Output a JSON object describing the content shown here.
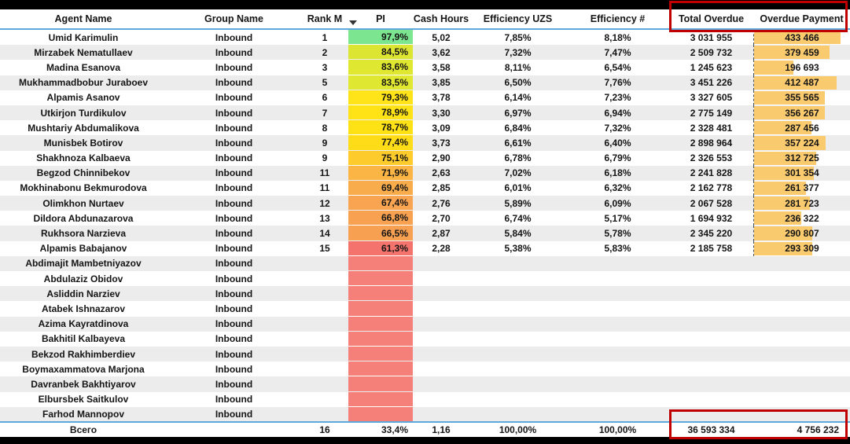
{
  "colors": {
    "accent_blue": "#5FA8DB",
    "highlight_red": "#C00000",
    "bar_fill": "#FACA6E",
    "alt_row": "#ECECEC",
    "blank_pi_red": "#F57F79"
  },
  "icons": {
    "sort_descending_icon": "triangle-down"
  },
  "table": {
    "columns": [
      {
        "key": "agent",
        "label": "Agent Name"
      },
      {
        "key": "group",
        "label": "Group Name"
      },
      {
        "key": "rank",
        "label": "Rank M"
      },
      {
        "key": "pi",
        "label": "PI"
      },
      {
        "key": "cash",
        "label": "Cash Hours"
      },
      {
        "key": "eff_uzs",
        "label": "Efficiency UZS"
      },
      {
        "key": "eff_num",
        "label": "Efficiency #"
      },
      {
        "key": "total_overdue",
        "label": "Total Overdue"
      },
      {
        "key": "overdue_payment",
        "label": "Overdue Payment"
      }
    ],
    "bar_max": 433466,
    "rows": [
      {
        "agent": "Umid Karimulin",
        "group": "Inbound",
        "rank": "1",
        "pi": "97,9%",
        "pi_color": "#7CE58F",
        "cash": "5,02",
        "eff_uzs": "7,85%",
        "eff_num": "8,18%",
        "total_overdue": "3 031 955",
        "overdue_payment": "433 466",
        "bar": 433466
      },
      {
        "agent": "Mirzabek Nematullaev",
        "group": "Inbound",
        "rank": "2",
        "pi": "84,5%",
        "pi_color": "#DCE532",
        "cash": "3,62",
        "eff_uzs": "7,32%",
        "eff_num": "7,47%",
        "total_overdue": "2 509 732",
        "overdue_payment": "379 459",
        "bar": 379459
      },
      {
        "agent": "Madina Esanova",
        "group": "Inbound",
        "rank": "3",
        "pi": "83,6%",
        "pi_color": "#DFE731",
        "cash": "3,58",
        "eff_uzs": "8,11%",
        "eff_num": "6,54%",
        "total_overdue": "1 245 623",
        "overdue_payment": "196 693",
        "bar": 196693
      },
      {
        "agent": "Mukhammadbobur Juraboev",
        "group": "Inbound",
        "rank": "5",
        "pi": "83,5%",
        "pi_color": "#DFE731",
        "cash": "3,85",
        "eff_uzs": "6,50%",
        "eff_num": "7,76%",
        "total_overdue": "3 451 226",
        "overdue_payment": "412 487",
        "bar": 412487
      },
      {
        "agent": "Alpamis Asanov",
        "group": "Inbound",
        "rank": "6",
        "pi": "79,3%",
        "pi_color": "#FFE41A",
        "cash": "3,78",
        "eff_uzs": "6,14%",
        "eff_num": "7,23%",
        "total_overdue": "3 327 605",
        "overdue_payment": "355 565",
        "bar": 355565
      },
      {
        "agent": "Utkirjon Turdikulov",
        "group": "Inbound",
        "rank": "7",
        "pi": "78,9%",
        "pi_color": "#FFE316",
        "cash": "3,30",
        "eff_uzs": "6,97%",
        "eff_num": "6,94%",
        "total_overdue": "2 775 149",
        "overdue_payment": "356 267",
        "bar": 356267
      },
      {
        "agent": "Mushtariy Abdumalikova",
        "group": "Inbound",
        "rank": "8",
        "pi": "78,7%",
        "pi_color": "#FFE216",
        "cash": "3,09",
        "eff_uzs": "6,84%",
        "eff_num": "7,32%",
        "total_overdue": "2 328 481",
        "overdue_payment": "287 456",
        "bar": 287456
      },
      {
        "agent": "Munisbek Botirov",
        "group": "Inbound",
        "rank": "9",
        "pi": "77,4%",
        "pi_color": "#FFDC18",
        "cash": "3,73",
        "eff_uzs": "6,61%",
        "eff_num": "6,40%",
        "total_overdue": "2 898 964",
        "overdue_payment": "357 224",
        "bar": 357224
      },
      {
        "agent": "Shakhnoza Kalbaeva",
        "group": "Inbound",
        "rank": "9",
        "pi": "75,1%",
        "pi_color": "#FECB2C",
        "cash": "2,90",
        "eff_uzs": "6,78%",
        "eff_num": "6,79%",
        "total_overdue": "2 326 553",
        "overdue_payment": "312 725",
        "bar": 312725
      },
      {
        "agent": "Begzod Chinnibekov",
        "group": "Inbound",
        "rank": "11",
        "pi": "71,9%",
        "pi_color": "#FBB544",
        "cash": "2,63",
        "eff_uzs": "7,02%",
        "eff_num": "6,18%",
        "total_overdue": "2 241 828",
        "overdue_payment": "301 354",
        "bar": 301354
      },
      {
        "agent": "Mokhinabonu Bekmurodova",
        "group": "Inbound",
        "rank": "11",
        "pi": "69,4%",
        "pi_color": "#F9AC4B",
        "cash": "2,85",
        "eff_uzs": "6,01%",
        "eff_num": "6,32%",
        "total_overdue": "2 162 778",
        "overdue_payment": "261 377",
        "bar": 261377
      },
      {
        "agent": "Olimkhon Nurtaev",
        "group": "Inbound",
        "rank": "12",
        "pi": "67,4%",
        "pi_color": "#F8A450",
        "cash": "2,76",
        "eff_uzs": "5,89%",
        "eff_num": "6,09%",
        "total_overdue": "2 067 528",
        "overdue_payment": "281 723",
        "bar": 281723
      },
      {
        "agent": "Dildora Abdunazarova",
        "group": "Inbound",
        "rank": "13",
        "pi": "66,8%",
        "pi_color": "#F8A251",
        "cash": "2,70",
        "eff_uzs": "6,74%",
        "eff_num": "5,17%",
        "total_overdue": "1 694 932",
        "overdue_payment": "236 322",
        "bar": 236322
      },
      {
        "agent": "Rukhsora Narzieva",
        "group": "Inbound",
        "rank": "14",
        "pi": "66,5%",
        "pi_color": "#F8A052",
        "cash": "2,87",
        "eff_uzs": "5,84%",
        "eff_num": "5,78%",
        "total_overdue": "2 345 220",
        "overdue_payment": "290 807",
        "bar": 290807
      },
      {
        "agent": "Alpamis Babajanov",
        "group": "Inbound",
        "rank": "15",
        "pi": "61,3%",
        "pi_color": "#F4736C",
        "cash": "2,28",
        "eff_uzs": "5,38%",
        "eff_num": "5,83%",
        "total_overdue": "2 185 758",
        "overdue_payment": "293 309",
        "bar": 293309
      },
      {
        "agent": "Abdimajit Mambetniyazov",
        "group": "Inbound",
        "rank": "",
        "pi": "",
        "pi_color": "#F57F79",
        "cash": "",
        "eff_uzs": "",
        "eff_num": "",
        "total_overdue": "",
        "overdue_payment": "",
        "bar": null
      },
      {
        "agent": "Abdulaziz Obidov",
        "group": "Inbound",
        "rank": "",
        "pi": "",
        "pi_color": "#F57F79",
        "cash": "",
        "eff_uzs": "",
        "eff_num": "",
        "total_overdue": "",
        "overdue_payment": "",
        "bar": null
      },
      {
        "agent": "Asliddin Narziev",
        "group": "Inbound",
        "rank": "",
        "pi": "",
        "pi_color": "#F57F79",
        "cash": "",
        "eff_uzs": "",
        "eff_num": "",
        "total_overdue": "",
        "overdue_payment": "",
        "bar": null
      },
      {
        "agent": "Atabek Ishnazarov",
        "group": "Inbound",
        "rank": "",
        "pi": "",
        "pi_color": "#F57F79",
        "cash": "",
        "eff_uzs": "",
        "eff_num": "",
        "total_overdue": "",
        "overdue_payment": "",
        "bar": null
      },
      {
        "agent": "Azima Kayratdinova",
        "group": "Inbound",
        "rank": "",
        "pi": "",
        "pi_color": "#F57F79",
        "cash": "",
        "eff_uzs": "",
        "eff_num": "",
        "total_overdue": "",
        "overdue_payment": "",
        "bar": null
      },
      {
        "agent": "Bakhitil Kalbayeva",
        "group": "Inbound",
        "rank": "",
        "pi": "",
        "pi_color": "#F57F79",
        "cash": "",
        "eff_uzs": "",
        "eff_num": "",
        "total_overdue": "",
        "overdue_payment": "",
        "bar": null
      },
      {
        "agent": "Bekzod Rakhimberdiev",
        "group": "Inbound",
        "rank": "",
        "pi": "",
        "pi_color": "#F57F79",
        "cash": "",
        "eff_uzs": "",
        "eff_num": "",
        "total_overdue": "",
        "overdue_payment": "",
        "bar": null
      },
      {
        "agent": "Boymaxammatova Marjona",
        "group": "Inbound",
        "rank": "",
        "pi": "",
        "pi_color": "#F57F79",
        "cash": "",
        "eff_uzs": "",
        "eff_num": "",
        "total_overdue": "",
        "overdue_payment": "",
        "bar": null
      },
      {
        "agent": "Davranbek Bakhtiyarov",
        "group": "Inbound",
        "rank": "",
        "pi": "",
        "pi_color": "#F57F79",
        "cash": "",
        "eff_uzs": "",
        "eff_num": "",
        "total_overdue": "",
        "overdue_payment": "",
        "bar": null
      },
      {
        "agent": "Elbursbek Saitkulov",
        "group": "Inbound",
        "rank": "",
        "pi": "",
        "pi_color": "#F57F79",
        "cash": "",
        "eff_uzs": "",
        "eff_num": "",
        "total_overdue": "",
        "overdue_payment": "",
        "bar": null
      },
      {
        "agent": "Farhod Mannopov",
        "group": "Inbound",
        "rank": "",
        "pi": "",
        "pi_color": "#F57F79",
        "cash": "",
        "eff_uzs": "",
        "eff_num": "",
        "total_overdue": "",
        "overdue_payment": "",
        "bar": null
      }
    ],
    "total": {
      "label": "Всего",
      "group": "",
      "rank": "16",
      "pi": "33,4%",
      "cash": "1,16",
      "eff_uzs": "100,00%",
      "eff_num": "100,00%",
      "total_overdue": "36 593 334",
      "overdue_payment": "4 756 232"
    }
  }
}
